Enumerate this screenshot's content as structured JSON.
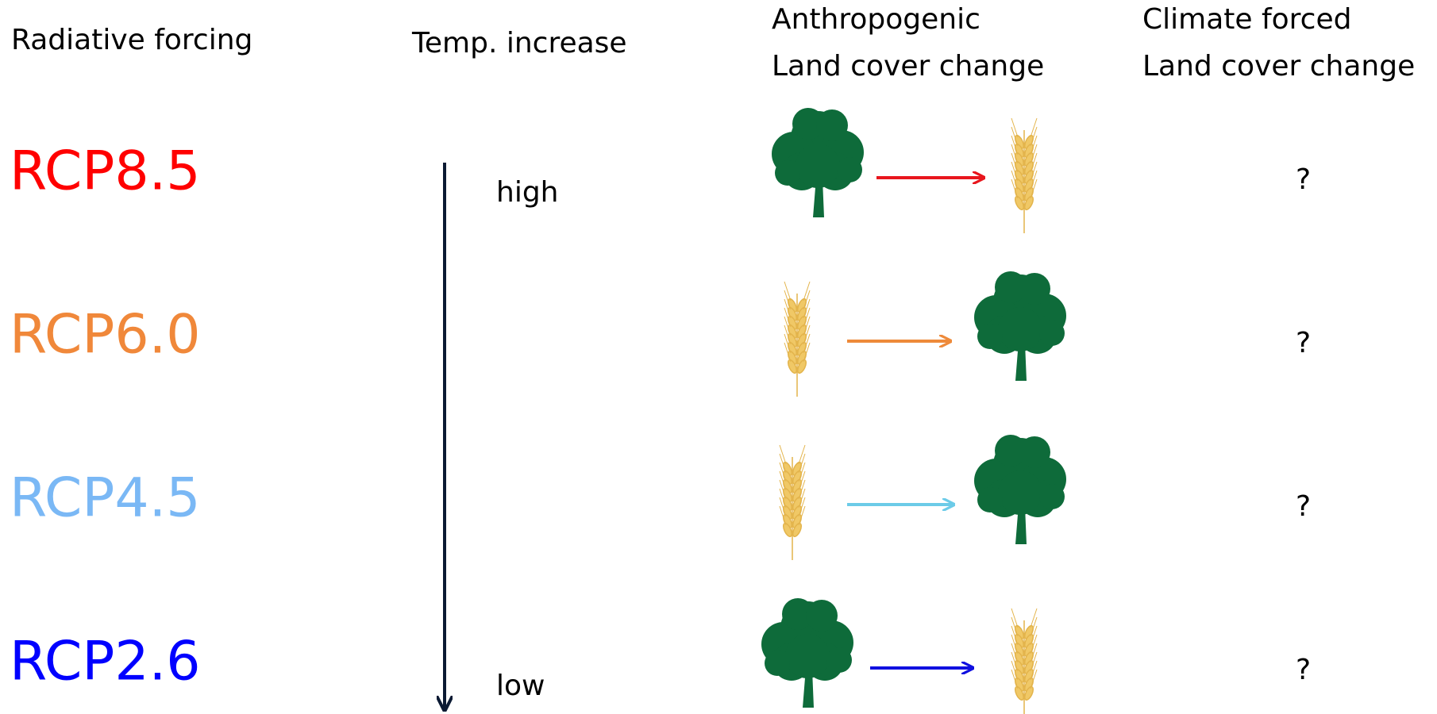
{
  "headers": {
    "forcing": "Radiative forcing",
    "temp": "Temp. increase",
    "anthropogenic": [
      "Anthropogenic",
      "Land cover change"
    ],
    "climate": [
      "Climate forced",
      "Land cover change"
    ]
  },
  "temp_labels": {
    "high": "high",
    "low": "low"
  },
  "rows": [
    {
      "label": "RCP8.5",
      "result": "?"
    },
    {
      "label": "RCP6.0",
      "result": "?"
    },
    {
      "label": "RCP4.5",
      "result": "?"
    },
    {
      "label": "RCP2.6",
      "result": "?"
    }
  ]
}
